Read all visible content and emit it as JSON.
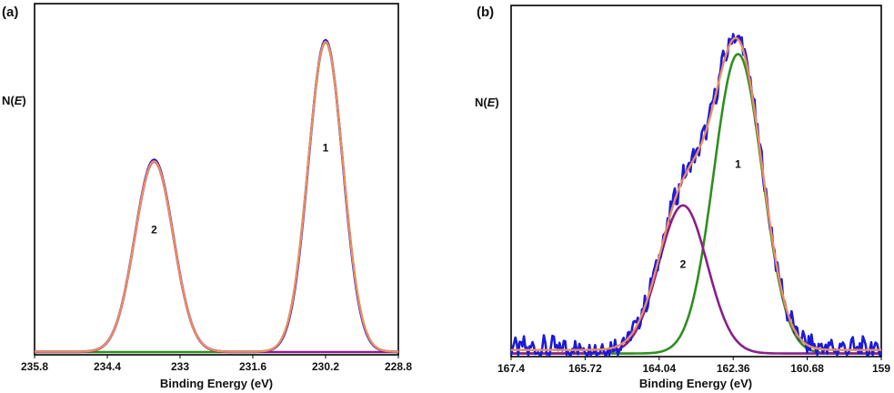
{
  "chart_data": [
    {
      "type": "line",
      "panel": "(a)",
      "xlabel": "Binding Energy (eV)",
      "ylabel_prefix": "N(",
      "ylabel_italic": "E",
      "ylabel_suffix": ")",
      "xlim": [
        235.8,
        228.8
      ],
      "ylim": [
        0,
        1.0
      ],
      "xticks": [
        "235.8",
        "234.4",
        "233",
        "231.6",
        "230.2",
        "228.8"
      ],
      "annotations": [
        {
          "text": "1",
          "x": 230.2,
          "y": 0.64
        },
        {
          "text": "2",
          "x": 233.5,
          "y": 0.38
        }
      ],
      "series": [
        {
          "name": "measured",
          "color": "#1a1adb",
          "kind": "data",
          "peaks": [
            {
              "center": 230.2,
              "amp": 0.99,
              "sigma": 0.33
            },
            {
              "center": 233.5,
              "amp": 0.61,
              "sigma": 0.37
            }
          ],
          "baseline": 0.004
        },
        {
          "name": "fit envelope",
          "color": "#f08c5c",
          "kind": "fit",
          "peaks": [
            {
              "center": 230.2,
              "amp": 0.985,
              "sigma": 0.335
            },
            {
              "center": 233.5,
              "amp": 0.605,
              "sigma": 0.37
            }
          ],
          "baseline": 0.004
        },
        {
          "name": "component 1",
          "color": "#2f8f1f",
          "kind": "component",
          "peaks": [
            {
              "center": 230.2,
              "amp": 0.985,
              "sigma": 0.335
            }
          ],
          "baseline": 0.003
        },
        {
          "name": "component 2",
          "color": "#8a1f8a",
          "kind": "component",
          "peaks": [
            {
              "center": 233.5,
              "amp": 0.605,
              "sigma": 0.37
            }
          ],
          "baseline": 0.003
        }
      ]
    },
    {
      "type": "line",
      "panel": "(b)",
      "xlabel": "Binding Energy (eV)",
      "ylabel_prefix": "N(",
      "ylabel_italic": "E",
      "ylabel_suffix": ")",
      "xlim": [
        167.4,
        159
      ],
      "ylim": [
        0,
        1.0
      ],
      "xticks": [
        "167.4",
        "165.72",
        "164.04",
        "162.36",
        "160.68",
        "159"
      ],
      "annotations": [
        {
          "text": "1",
          "x": 162.25,
          "y": 0.58
        },
        {
          "text": "2",
          "x": 163.5,
          "y": 0.27
        }
      ],
      "series": [
        {
          "name": "measured",
          "color": "#1a1adb",
          "kind": "noisy",
          "peaks": [
            {
              "center": 162.25,
              "amp": 0.93,
              "sigma": 0.55
            },
            {
              "center": 163.5,
              "amp": 0.46,
              "sigma": 0.55
            }
          ],
          "baseline": 0.02
        },
        {
          "name": "fit envelope",
          "color": "#f08c5c",
          "kind": "fit",
          "peaks": [
            {
              "center": 162.25,
              "amp": 0.93,
              "sigma": 0.55
            },
            {
              "center": 163.5,
              "amp": 0.46,
              "sigma": 0.55
            }
          ],
          "baseline": 0.015
        },
        {
          "name": "component 1",
          "color": "#2f8f1f",
          "kind": "component",
          "peaks": [
            {
              "center": 162.25,
              "amp": 0.93,
              "sigma": 0.55
            }
          ],
          "baseline": 0.004
        },
        {
          "name": "component 2",
          "color": "#8a1f8a",
          "kind": "component",
          "peaks": [
            {
              "center": 163.5,
              "amp": 0.46,
              "sigma": 0.55
            }
          ],
          "baseline": 0.004
        }
      ]
    }
  ]
}
